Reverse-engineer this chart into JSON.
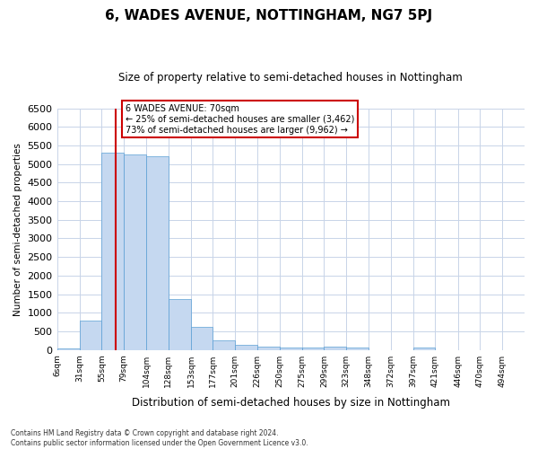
{
  "title": "6, WADES AVENUE, NOTTINGHAM, NG7 5PJ",
  "subtitle": "Size of property relative to semi-detached houses in Nottingham",
  "xlabel": "Distribution of semi-detached houses by size in Nottingham",
  "ylabel": "Number of semi-detached properties",
  "footnote": "Contains HM Land Registry data © Crown copyright and database right 2024.\nContains public sector information licensed under the Open Government Licence v3.0.",
  "property_size": 70,
  "property_label": "6 WADES AVENUE: 70sqm",
  "pct_smaller": 25,
  "count_smaller": 3462,
  "pct_larger": 73,
  "count_larger": 9962,
  "bin_labels": [
    "6sqm",
    "31sqm",
    "55sqm",
    "79sqm",
    "104sqm",
    "128sqm",
    "153sqm",
    "177sqm",
    "201sqm",
    "226sqm",
    "250sqm",
    "275sqm",
    "299sqm",
    "323sqm",
    "348sqm",
    "372sqm",
    "397sqm",
    "421sqm",
    "446sqm",
    "470sqm",
    "494sqm"
  ],
  "bin_edges": [
    6,
    31,
    55,
    79,
    104,
    128,
    153,
    177,
    201,
    226,
    250,
    275,
    299,
    323,
    348,
    372,
    397,
    421,
    446,
    470,
    494,
    519
  ],
  "bar_heights": [
    50,
    780,
    5300,
    5250,
    5200,
    1380,
    630,
    255,
    130,
    80,
    70,
    60,
    80,
    60,
    0,
    0,
    60,
    0,
    0,
    0,
    0
  ],
  "bar_color": "#c5d8f0",
  "bar_edge_color": "#5a9fd4",
  "vline_color": "#cc0000",
  "vline_x": 70,
  "annotation_box_color": "#cc0000",
  "background_color": "#ffffff",
  "grid_color": "#c8d4e8",
  "ylim": [
    0,
    6500
  ],
  "yticks": [
    0,
    500,
    1000,
    1500,
    2000,
    2500,
    3000,
    3500,
    4000,
    4500,
    5000,
    5500,
    6000,
    6500
  ]
}
